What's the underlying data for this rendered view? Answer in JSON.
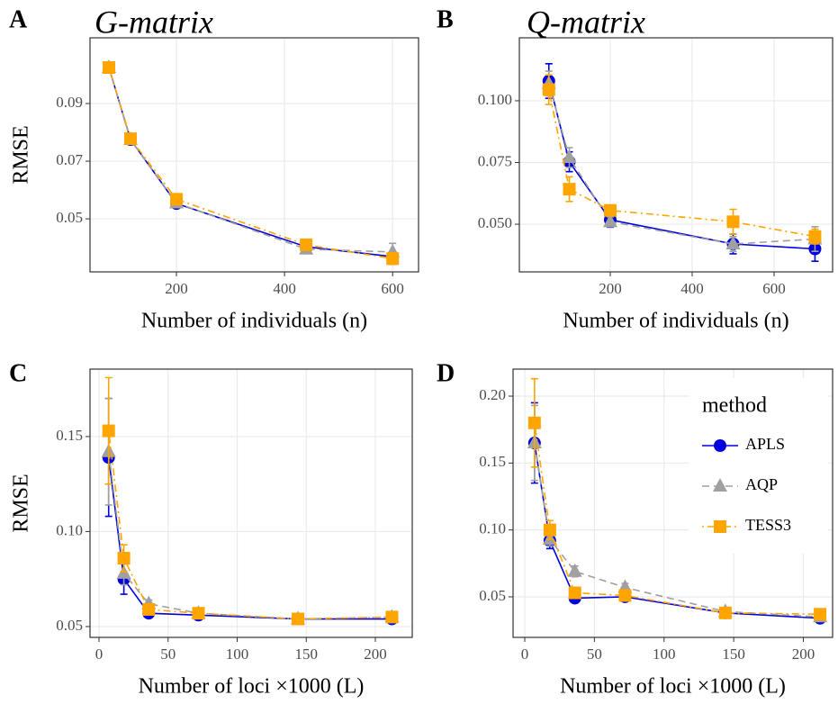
{
  "chart_data": [
    {
      "type": "line",
      "panel": "A",
      "title": "G-matrix",
      "x_label": "Number of individuals (n)",
      "y_label": "RMSE",
      "x": [
        75,
        115,
        200,
        440,
        600
      ],
      "xlim": [
        40,
        648
      ],
      "xticks": [
        200,
        400,
        600
      ],
      "ylim": [
        0.0316,
        0.1128
      ],
      "yticks": [
        0.05,
        0.07,
        0.09
      ],
      "grid": true,
      "series": [
        {
          "name": "APLS",
          "color": "#0000e0",
          "marker": "circle",
          "dash": "solid",
          "values": [
            0.1025,
            0.0775,
            0.0553,
            0.0403,
            0.0369
          ],
          "errors": [
            0.001,
            0.001,
            0.001,
            0.001,
            0.001
          ]
        },
        {
          "name": "AQP",
          "color": "#a0a0a0",
          "marker": "triangle",
          "dash": "dashed",
          "values": [
            0.1025,
            0.0775,
            0.0555,
            0.0395,
            0.0385
          ],
          "errors": [
            0.001,
            0.001,
            0.001,
            0.001,
            0.003
          ]
        },
        {
          "name": "TESS3",
          "color": "#ffa500",
          "marker": "square",
          "dash": "dotdash",
          "values": [
            0.1025,
            0.0778,
            0.0568,
            0.041,
            0.0362
          ],
          "errors": [
            0.001,
            0.001,
            0.001,
            0.001,
            0.002
          ]
        }
      ]
    },
    {
      "type": "line",
      "panel": "B",
      "title": "Q-matrix",
      "x_label": "Number of individuals (n)",
      "x": [
        50,
        100,
        200,
        500,
        700
      ],
      "xlim": [
        -22,
        743
      ],
      "xticks": [
        200,
        400,
        600
      ],
      "ylim": [
        0.0307,
        0.1255
      ],
      "yticks": [
        {
          "value": 0.05,
          "label": "0.050"
        },
        {
          "value": 0.075,
          "label": "0.075"
        },
        {
          "value": 0.1,
          "label": "0.100"
        }
      ],
      "grid": true,
      "series": [
        {
          "name": "APLS",
          "color": "#0000e0",
          "marker": "circle",
          "dash": "solid",
          "values": [
            0.108,
            0.0753,
            0.0518,
            0.042,
            0.04
          ],
          "errors": [
            0.007,
            0.004,
            0.003,
            0.004,
            0.005
          ]
        },
        {
          "name": "AQP",
          "color": "#a0a0a0",
          "marker": "triangle",
          "dash": "dashed",
          "values": [
            0.107,
            0.077,
            0.051,
            0.042,
            0.044
          ],
          "errors": [
            0.005,
            0.004,
            0.002,
            0.003,
            0.005
          ]
        },
        {
          "name": "TESS3",
          "color": "#ffa500",
          "marker": "square",
          "dash": "dotdash",
          "values": [
            0.1045,
            0.0642,
            0.0556,
            0.051,
            0.045
          ],
          "errors": [
            0.006,
            0.005,
            0.002,
            0.005,
            0.003
          ]
        }
      ]
    },
    {
      "type": "line",
      "panel": "C",
      "x_label": "Number of loci ×1000 (L)",
      "y_label": "RMSE",
      "x": [
        7,
        18,
        36,
        72,
        144,
        212
      ],
      "xlim": [
        -6.5,
        226.7
      ],
      "xticks": [
        0,
        50,
        100,
        150,
        200
      ],
      "ylim": [
        0.0443,
        0.1855
      ],
      "yticks": [
        0.05,
        {
          "value": 0.1,
          "label": "0.10"
        },
        0.15
      ],
      "grid": true,
      "series": [
        {
          "name": "APLS",
          "color": "#0000e0",
          "marker": "circle",
          "dash": "solid",
          "values": [
            0.139,
            0.075,
            0.057,
            0.056,
            0.054,
            0.054
          ],
          "errors": [
            0.031,
            0.008,
            0.002,
            0.001,
            0.001,
            0.001
          ]
        },
        {
          "name": "AQP",
          "color": "#a0a0a0",
          "marker": "triangle",
          "dash": "dashed",
          "values": [
            0.142,
            0.078,
            0.062,
            0.057,
            0.054,
            0.055
          ],
          "errors": [
            0.028,
            0.006,
            0.002,
            0.002,
            0.001,
            0.001
          ]
        },
        {
          "name": "TESS3",
          "color": "#ffa500",
          "marker": "square",
          "dash": "dotdash",
          "values": [
            0.153,
            0.086,
            0.059,
            0.057,
            0.054,
            0.055
          ],
          "errors": [
            0.028,
            0.007,
            0.002,
            0.001,
            0.001,
            0.001
          ]
        }
      ]
    },
    {
      "type": "line",
      "panel": "D",
      "x_label": "Number of loci ×1000 (L)",
      "x": [
        7,
        18,
        36,
        72,
        144,
        212
      ],
      "xlim": [
        -8.4,
        221
      ],
      "xticks": [
        0,
        50,
        100,
        150,
        200
      ],
      "ylim": [
        0.0197,
        0.2202
      ],
      "yticks": [
        0.05,
        {
          "value": 0.1,
          "label": "0.10"
        },
        0.15,
        {
          "value": 0.2,
          "label": "0.20"
        }
      ],
      "grid": true,
      "legend_title": "method",
      "legend": "right",
      "series": [
        {
          "name": "APLS",
          "color": "#0000e0",
          "marker": "circle",
          "dash": "solid",
          "values": [
            0.165,
            0.092,
            0.049,
            0.05,
            0.038,
            0.034
          ],
          "errors": [
            0.03,
            0.006,
            0.002,
            0.002,
            0.001,
            0.001
          ]
        },
        {
          "name": "AQP",
          "color": "#a0a0a0",
          "marker": "triangle",
          "dash": "dashed",
          "values": [
            0.165,
            0.093,
            0.069,
            0.057,
            0.039,
            0.035
          ],
          "errors": [
            0.028,
            0.005,
            0.004,
            0.003,
            0.002,
            0.001
          ]
        },
        {
          "name": "TESS3",
          "color": "#ffa500",
          "marker": "square",
          "dash": "dotdash",
          "values": [
            0.18,
            0.1,
            0.053,
            0.051,
            0.038,
            0.037
          ],
          "errors": [
            0.033,
            0.007,
            0.003,
            0.002,
            0.002,
            0.001
          ]
        }
      ]
    }
  ]
}
